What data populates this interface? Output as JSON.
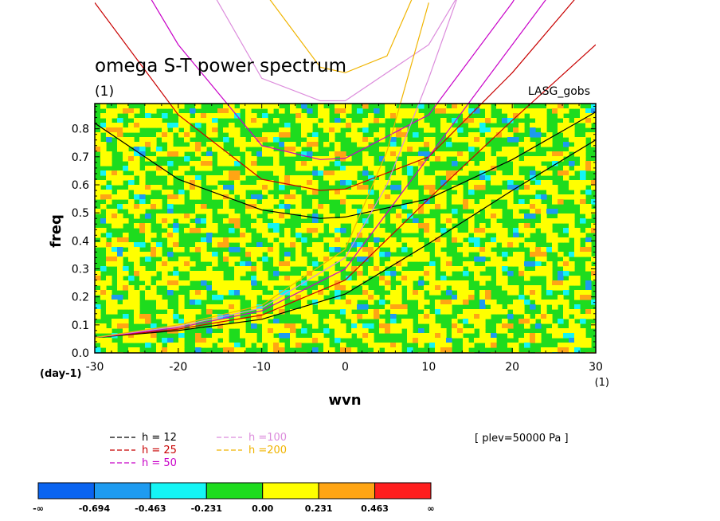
{
  "chart_data": {
    "type": "heatmap",
    "title": "omega S-T power spectrum",
    "subtitle": "(1)",
    "dataset_label": "LASG_gobs",
    "xlabel": "wvn",
    "ylabel": "freq",
    "x_unit": "(1)",
    "y_unit": "(day-1)",
    "xlim": [
      -30,
      30
    ],
    "ylim": [
      0,
      0.89
    ],
    "x_ticks": [
      "-30",
      "-20",
      "-10",
      "0",
      "10",
      "20",
      "30"
    ],
    "x_tick_values": [
      -30,
      -20,
      -10,
      0,
      10,
      20,
      30
    ],
    "y_ticks": [
      "0.0",
      "0.1",
      "0.2",
      "0.3",
      "0.4",
      "0.5",
      "0.6",
      "0.7",
      "0.8"
    ],
    "y_tick_values": [
      0,
      0.1,
      0.2,
      0.3,
      0.4,
      0.5,
      0.6,
      0.7,
      0.8
    ],
    "colorbar": {
      "labels": [
        "-∞",
        "-0.694",
        "-0.463",
        "-0.231",
        "0.00",
        "0.231",
        "0.463",
        "∞"
      ],
      "colors": [
        "#0a64f0",
        "#1e9bf0",
        "#14f5f5",
        "#1edc1e",
        "#ffff00",
        "#ffa514",
        "#ff1e1e"
      ]
    },
    "annotation": "[ plev=50000 Pa ]",
    "series": [
      {
        "name": "h = 12",
        "color": "#000000",
        "x": [
          -30,
          -20,
          -10,
          -3,
          0,
          10,
          20,
          30
        ],
        "y": [
          0.82,
          0.62,
          0.51,
          0.48,
          0.485,
          0.55,
          0.69,
          0.86
        ]
      },
      {
        "name": "h = 25",
        "color": "#c80000",
        "x": [
          -30,
          -20,
          -10,
          -3,
          0,
          10,
          20,
          30
        ],
        "y": [
          1.25,
          0.85,
          0.62,
          0.58,
          0.585,
          0.7,
          1.0,
          1.35
        ]
      },
      {
        "name": "h = 50",
        "color": "#c800c8",
        "x": [
          -30,
          -20,
          -10,
          -3,
          0,
          10,
          20,
          30
        ],
        "y": [
          1.6,
          1.1,
          0.74,
          0.69,
          0.695,
          0.85,
          1.25,
          1.75
        ]
      },
      {
        "name": "h =100",
        "color": "#dc8cdc",
        "x": [
          -20,
          -10,
          -3,
          0,
          10,
          20
        ],
        "y": [
          1.5,
          0.98,
          0.9,
          0.9,
          1.1,
          1.6
        ]
      },
      {
        "name": "h =200",
        "color": "#f0b400",
        "x": [
          -10,
          -3,
          0,
          5,
          10
        ],
        "y": [
          1.3,
          1.02,
          1.0,
          1.06,
          1.4
        ]
      },
      {
        "name": "kelvin h = 12",
        "color": "#000000",
        "x": [
          -30,
          -20,
          -10,
          0,
          10,
          20,
          30
        ],
        "y": [
          0.055,
          0.08,
          0.12,
          0.21,
          0.39,
          0.58,
          0.76
        ]
      },
      {
        "name": "kelvin h = 25",
        "color": "#c80000",
        "x": [
          -30,
          -20,
          -10,
          0,
          10,
          20,
          30
        ],
        "y": [
          0.055,
          0.085,
          0.135,
          0.26,
          0.55,
          0.83,
          1.1
        ]
      },
      {
        "name": "kelvin h = 50",
        "color": "#c800c8",
        "x": [
          -30,
          -20,
          -10,
          0,
          10,
          20,
          30
        ],
        "y": [
          0.055,
          0.09,
          0.15,
          0.3,
          0.7,
          1.1,
          1.5
        ]
      },
      {
        "name": "kelvin h =100",
        "color": "#dc8cdc",
        "x": [
          -30,
          -20,
          -10,
          0,
          5,
          10,
          15
        ],
        "y": [
          0.055,
          0.095,
          0.16,
          0.34,
          0.6,
          0.98,
          1.4
        ]
      },
      {
        "name": "kelvin h =200",
        "color": "#f0b400",
        "x": [
          -30,
          -20,
          -10,
          0,
          5,
          10
        ],
        "y": [
          0.055,
          0.1,
          0.17,
          0.37,
          0.72,
          1.25
        ]
      }
    ],
    "legend": [
      {
        "label": "h = 12",
        "color": "#000000"
      },
      {
        "label": "h = 25",
        "color": "#c80000"
      },
      {
        "label": "h = 50",
        "color": "#c800c8"
      },
      {
        "label": "h =100",
        "color": "#dc8cdc"
      },
      {
        "label": "h =200",
        "color": "#f0b400"
      }
    ]
  }
}
